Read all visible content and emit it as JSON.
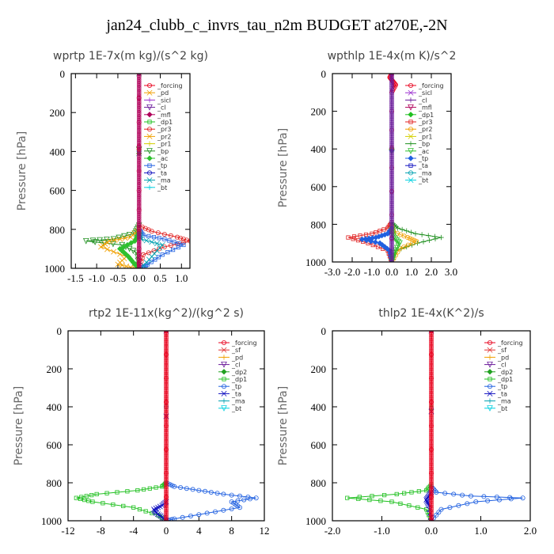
{
  "figure_title": "jan24_clubb_c_invrs_tau_n2m  BUDGET at270E,-2N",
  "colors": {
    "forcing": "#e8001c",
    "pd": "#f2a000",
    "sicl": "#9b30d0",
    "cl": "#6a1b9a",
    "mfl": "#b0005a",
    "dp1": "#20c020",
    "pr3": "#e02020",
    "pr2": "#f0a000",
    "pr1": "#d4d000",
    "bp": "#209020",
    "ac": "#2ec02e",
    "tp": "#2060e0",
    "ta": "#1010c0",
    "ma": "#00a0b0",
    "bt": "#00d0e0",
    "sf": "#e03030",
    "dp2": "#20a020"
  },
  "chart_data": [
    {
      "type": "line",
      "title": "wprtp   1E-7x(m kg)/(s^2 kg)",
      "ylabel": "Pressure [hPa]",
      "xlim": [
        -1.6,
        1.2
      ],
      "ylim": [
        1000,
        0
      ],
      "xticks": [
        "-1.5",
        "-1.0",
        "-0.5",
        "0.0",
        "0.5",
        "1.0"
      ],
      "xtick_values": [
        -1.5,
        -1.0,
        -0.5,
        0.0,
        0.5,
        1.0
      ],
      "yticks": [
        "0",
        "200",
        "400",
        "600",
        "800",
        "1000"
      ],
      "ytick_values": [
        0,
        200,
        400,
        600,
        800,
        1000
      ],
      "legend": [
        "_forcing",
        "_pd",
        "_sicl",
        "_cl",
        "_mfl",
        "_dp1",
        "_pr3",
        "_pr2",
        "_pr1",
        "_bp",
        "_ac",
        "_tp",
        "_ta",
        "_ma",
        "_bt"
      ],
      "legend_position": "top-right",
      "series": [
        {
          "name": "_bp",
          "x": [
            0,
            0,
            -0.1,
            -0.6,
            -1.25,
            -0.4,
            -0.05,
            0
          ],
          "y": [
            0,
            780,
            820,
            850,
            860,
            880,
            920,
            1000
          ]
        },
        {
          "name": "_pr3",
          "x": [
            0,
            0,
            0.3,
            0.9,
            1.2,
            0.6,
            0.1,
            0
          ],
          "y": [
            0,
            780,
            810,
            840,
            860,
            890,
            930,
            1000
          ]
        },
        {
          "name": "_tp",
          "x": [
            0,
            0,
            0.1,
            0.6,
            1.05,
            0.55,
            0.2,
            0.05
          ],
          "y": [
            0,
            800,
            830,
            850,
            880,
            930,
            980,
            1000
          ]
        },
        {
          "name": "_pr2",
          "x": [
            0,
            0,
            -0.2,
            -0.7,
            -0.9,
            -0.3,
            -0.5,
            -0.1
          ],
          "y": [
            0,
            800,
            840,
            860,
            890,
            940,
            980,
            1000
          ]
        },
        {
          "name": "_ac",
          "x": [
            0,
            0,
            -0.1,
            -0.45,
            -0.25,
            -0.1,
            0
          ],
          "y": [
            0,
            820,
            860,
            900,
            940,
            980,
            1000
          ]
        },
        {
          "name": "_ma",
          "x": [
            0,
            0,
            0.05,
            0.55,
            0.3,
            0.05
          ],
          "y": [
            0,
            820,
            850,
            880,
            940,
            1000
          ]
        },
        {
          "name": "_forcing",
          "x": [
            0,
            0,
            0,
            0
          ],
          "y": [
            0,
            500,
            900,
            1000
          ]
        }
      ]
    },
    {
      "type": "line",
      "title": "wpthlp   1E-4x(m K)/s^2",
      "ylabel": "Pressure [hPa]",
      "xlim": [
        -3.0,
        3.0
      ],
      "ylim": [
        1000,
        0
      ],
      "xticks": [
        "-3.0",
        "-2.0",
        "-1.0",
        "0.0",
        "1.0",
        "2.0",
        "3.0"
      ],
      "xtick_values": [
        -3.0,
        -2.0,
        -1.0,
        0.0,
        1.0,
        2.0,
        3.0
      ],
      "yticks": [
        "0",
        "200",
        "400",
        "600",
        "800",
        "1000"
      ],
      "ytick_values": [
        0,
        200,
        400,
        600,
        800,
        1000
      ],
      "legend": [
        "_forcing",
        "_sicl",
        "_cl",
        "_mfl",
        "_dp1",
        "_pr3",
        "_pr2",
        "_pr1",
        "_bp",
        "_ac",
        "_tp",
        "_ta",
        "_ma",
        "_bt"
      ],
      "legend_position": "top-right",
      "series": [
        {
          "name": "_pr3",
          "x": [
            0,
            0,
            -0.2,
            -1.0,
            -2.2,
            -1.2,
            -0.2,
            0
          ],
          "y": [
            0,
            790,
            820,
            850,
            870,
            900,
            940,
            1000
          ]
        },
        {
          "name": "_bp",
          "x": [
            0,
            0,
            0.3,
            1.2,
            2.5,
            1.3,
            0.2,
            0
          ],
          "y": [
            0,
            790,
            820,
            850,
            870,
            900,
            940,
            1000
          ]
        },
        {
          "name": "_pr2",
          "x": [
            0,
            0,
            0.1,
            0.8,
            1.25,
            0.4,
            0
          ],
          "y": [
            0,
            810,
            840,
            870,
            890,
            930,
            1000
          ]
        },
        {
          "name": "_tp",
          "x": [
            0,
            0,
            -0.2,
            -0.8,
            -1.5,
            -0.6,
            -0.1,
            0
          ],
          "y": [
            0,
            820,
            850,
            870,
            880,
            900,
            940,
            1000
          ]
        },
        {
          "name": "_ac",
          "x": [
            0,
            0,
            0.1,
            0.4,
            0.15,
            0
          ],
          "y": [
            0,
            830,
            870,
            900,
            950,
            1000
          ]
        },
        {
          "name": "_forcing",
          "x": [
            0,
            -0.1,
            0.05,
            0.2,
            0,
            0,
            0
          ],
          "y": [
            0,
            20,
            40,
            60,
            100,
            500,
            1000
          ]
        }
      ]
    },
    {
      "type": "line",
      "title": "rtp2   1E-11x(kg^2)/(kg^2 s)",
      "ylabel": "Pressure [hPa]",
      "xlim": [
        -12,
        12
      ],
      "ylim": [
        1000,
        0
      ],
      "xticks": [
        "-12",
        "-8",
        "-4",
        "0",
        "4",
        "8",
        "12"
      ],
      "xtick_values": [
        -12,
        -8,
        -4,
        0,
        4,
        8,
        12
      ],
      "yticks": [
        "0",
        "200",
        "400",
        "600",
        "800",
        "1000"
      ],
      "ytick_values": [
        0,
        200,
        400,
        600,
        800,
        1000
      ],
      "legend": [
        "_forcing",
        "_sf",
        "_pd",
        "_cl",
        "_dp2",
        "_dp1",
        "_tp",
        "_ta",
        "_ma",
        "_bt"
      ],
      "legend_position": "top-right",
      "series": [
        {
          "name": "_dp1",
          "x": [
            0,
            0,
            -0.5,
            -3.5,
            -8.5,
            -11,
            -9,
            -4,
            -1,
            0
          ],
          "y": [
            0,
            800,
            820,
            840,
            860,
            880,
            900,
            930,
            970,
            1000
          ]
        },
        {
          "name": "_tp",
          "x": [
            0,
            0,
            1,
            4,
            7,
            11,
            8,
            9,
            5,
            1,
            0
          ],
          "y": [
            0,
            800,
            820,
            840,
            860,
            880,
            900,
            930,
            960,
            990,
            1000
          ]
        },
        {
          "name": "_ta",
          "x": [
            0,
            0,
            -0.5,
            -1.5,
            -1.2,
            -0.5,
            0
          ],
          "y": [
            0,
            900,
            920,
            940,
            960,
            980,
            1000
          ]
        },
        {
          "name": "_forcing",
          "x": [
            0,
            0,
            0
          ],
          "y": [
            0,
            500,
            1000
          ]
        }
      ]
    },
    {
      "type": "line",
      "title": "thlp2   1E-4x(K^2)/s",
      "ylabel": "Pressure [hPa]",
      "xlim": [
        -2.0,
        2.0
      ],
      "ylim": [
        1000,
        0
      ],
      "xticks": [
        "-2.0",
        "-1.0",
        "0.0",
        "1.0",
        "2.0"
      ],
      "xtick_values": [
        -2.0,
        -1.0,
        0.0,
        1.0,
        2.0
      ],
      "yticks": [
        "0",
        "200",
        "400",
        "600",
        "800",
        "1000"
      ],
      "ytick_values": [
        0,
        200,
        400,
        600,
        800,
        1000
      ],
      "legend": [
        "_forcing",
        "_sf",
        "_pd",
        "_cl",
        "_dp2",
        "_dp1",
        "_tp",
        "_ta",
        "_ma",
        "_bt"
      ],
      "legend_position": "top-right",
      "series": [
        {
          "name": "_dp1",
          "x": [
            0,
            0,
            -0.1,
            -0.7,
            -1.7,
            -0.8,
            -0.1,
            0
          ],
          "y": [
            0,
            810,
            840,
            860,
            880,
            900,
            940,
            1000
          ]
        },
        {
          "name": "_tp",
          "x": [
            0,
            0,
            0.1,
            0.8,
            1.85,
            0.9,
            0.2,
            0
          ],
          "y": [
            0,
            820,
            850,
            870,
            880,
            900,
            940,
            1000
          ]
        },
        {
          "name": "_ta",
          "x": [
            0,
            0,
            -0.05,
            -0.1,
            -0.05,
            0
          ],
          "y": [
            0,
            850,
            870,
            890,
            920,
            1000
          ]
        },
        {
          "name": "_forcing",
          "x": [
            0,
            0,
            0
          ],
          "y": [
            0,
            500,
            1000
          ]
        }
      ]
    }
  ]
}
